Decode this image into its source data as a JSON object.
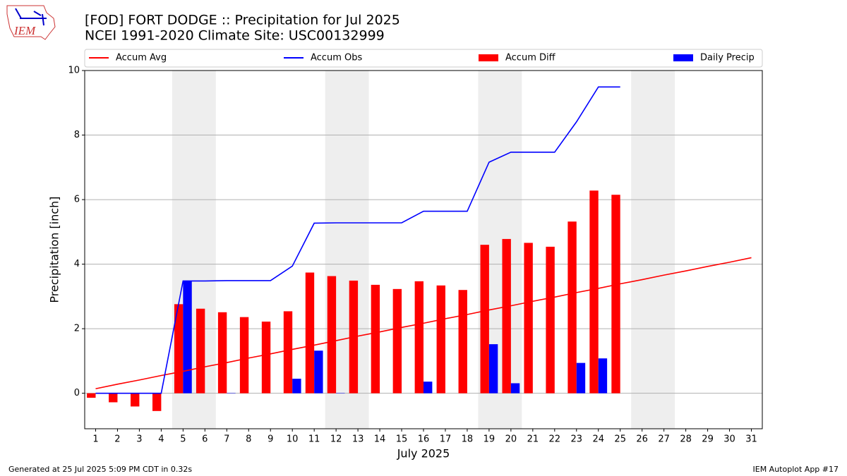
{
  "chart_data": {
    "type": "combo",
    "title": "[FOD] FORT DODGE :: Precipitation for Jul 2025",
    "subtitle": "NCEI 1991-2020 Climate Site: USC00132999",
    "logo_text": "IEM",
    "xlabel": "July 2025",
    "ylabel": "Precipitation [inch]",
    "footer_left": "Generated at 25 Jul 2025 5:09 PM CDT in 0.32s",
    "footer_right": "IEM Autoplot App #17",
    "x": [
      1,
      2,
      3,
      4,
      5,
      6,
      7,
      8,
      9,
      10,
      11,
      12,
      13,
      14,
      15,
      16,
      17,
      18,
      19,
      20,
      21,
      22,
      23,
      24,
      25,
      26,
      27,
      28,
      29,
      30,
      31
    ],
    "xlim": [
      0.5,
      31.5
    ],
    "xticks": [
      1,
      2,
      3,
      4,
      5,
      6,
      7,
      8,
      9,
      10,
      11,
      12,
      13,
      14,
      15,
      16,
      17,
      18,
      19,
      20,
      21,
      22,
      23,
      24,
      25,
      26,
      27,
      28,
      29,
      30,
      31
    ],
    "ylim": [
      -1.1,
      10
    ],
    "yticks": [
      0,
      2,
      4,
      6,
      8,
      10
    ],
    "grid": true,
    "shaded_spans": [
      [
        4.5,
        6.5
      ],
      [
        11.5,
        13.5
      ],
      [
        18.5,
        20.5
      ],
      [
        25.5,
        27.5
      ]
    ],
    "shade_color": "#eeeeee",
    "legend_position": "top",
    "series": [
      {
        "name": "Accum Avg",
        "kind": "line",
        "color": "#ff0000",
        "values": [
          0.14,
          0.28,
          0.41,
          0.55,
          0.68,
          0.82,
          0.95,
          1.09,
          1.22,
          1.36,
          1.49,
          1.63,
          1.77,
          1.9,
          2.04,
          2.17,
          2.31,
          2.44,
          2.58,
          2.71,
          2.85,
          2.98,
          3.12,
          3.25,
          3.39,
          3.52,
          3.66,
          3.79,
          3.93,
          4.06,
          4.2
        ]
      },
      {
        "name": "Accum Obs",
        "kind": "line",
        "color": "#0000ff",
        "values": [
          0,
          0,
          0,
          0,
          3.48,
          3.48,
          3.49,
          3.49,
          3.49,
          3.94,
          5.27,
          5.28,
          5.28,
          5.28,
          5.28,
          5.64,
          5.64,
          5.64,
          7.16,
          7.47,
          7.47,
          7.47,
          8.41,
          9.49,
          9.49,
          null,
          null,
          null,
          null,
          null,
          null
        ]
      },
      {
        "name": "Accum Diff",
        "kind": "bar",
        "offset": -1,
        "color": "#ff0000",
        "values": [
          -0.14,
          -0.28,
          -0.41,
          -0.55,
          2.76,
          2.62,
          2.51,
          2.36,
          2.22,
          2.54,
          3.74,
          3.63,
          3.49,
          3.36,
          3.23,
          3.47,
          3.34,
          3.2,
          4.6,
          4.78,
          4.66,
          4.54,
          5.32,
          6.28,
          6.15,
          null,
          null,
          null,
          null,
          null,
          null
        ]
      },
      {
        "name": "Daily Precip",
        "kind": "bar",
        "offset": 0,
        "color": "#0000ff",
        "values": [
          0,
          0,
          0,
          0,
          3.48,
          0,
          0.01,
          0,
          0,
          0.45,
          1.32,
          0.01,
          0,
          0,
          0,
          0.36,
          0,
          0,
          1.52,
          0.31,
          0,
          0,
          0.94,
          1.08,
          0,
          null,
          null,
          null,
          null,
          null,
          null
        ]
      }
    ]
  }
}
